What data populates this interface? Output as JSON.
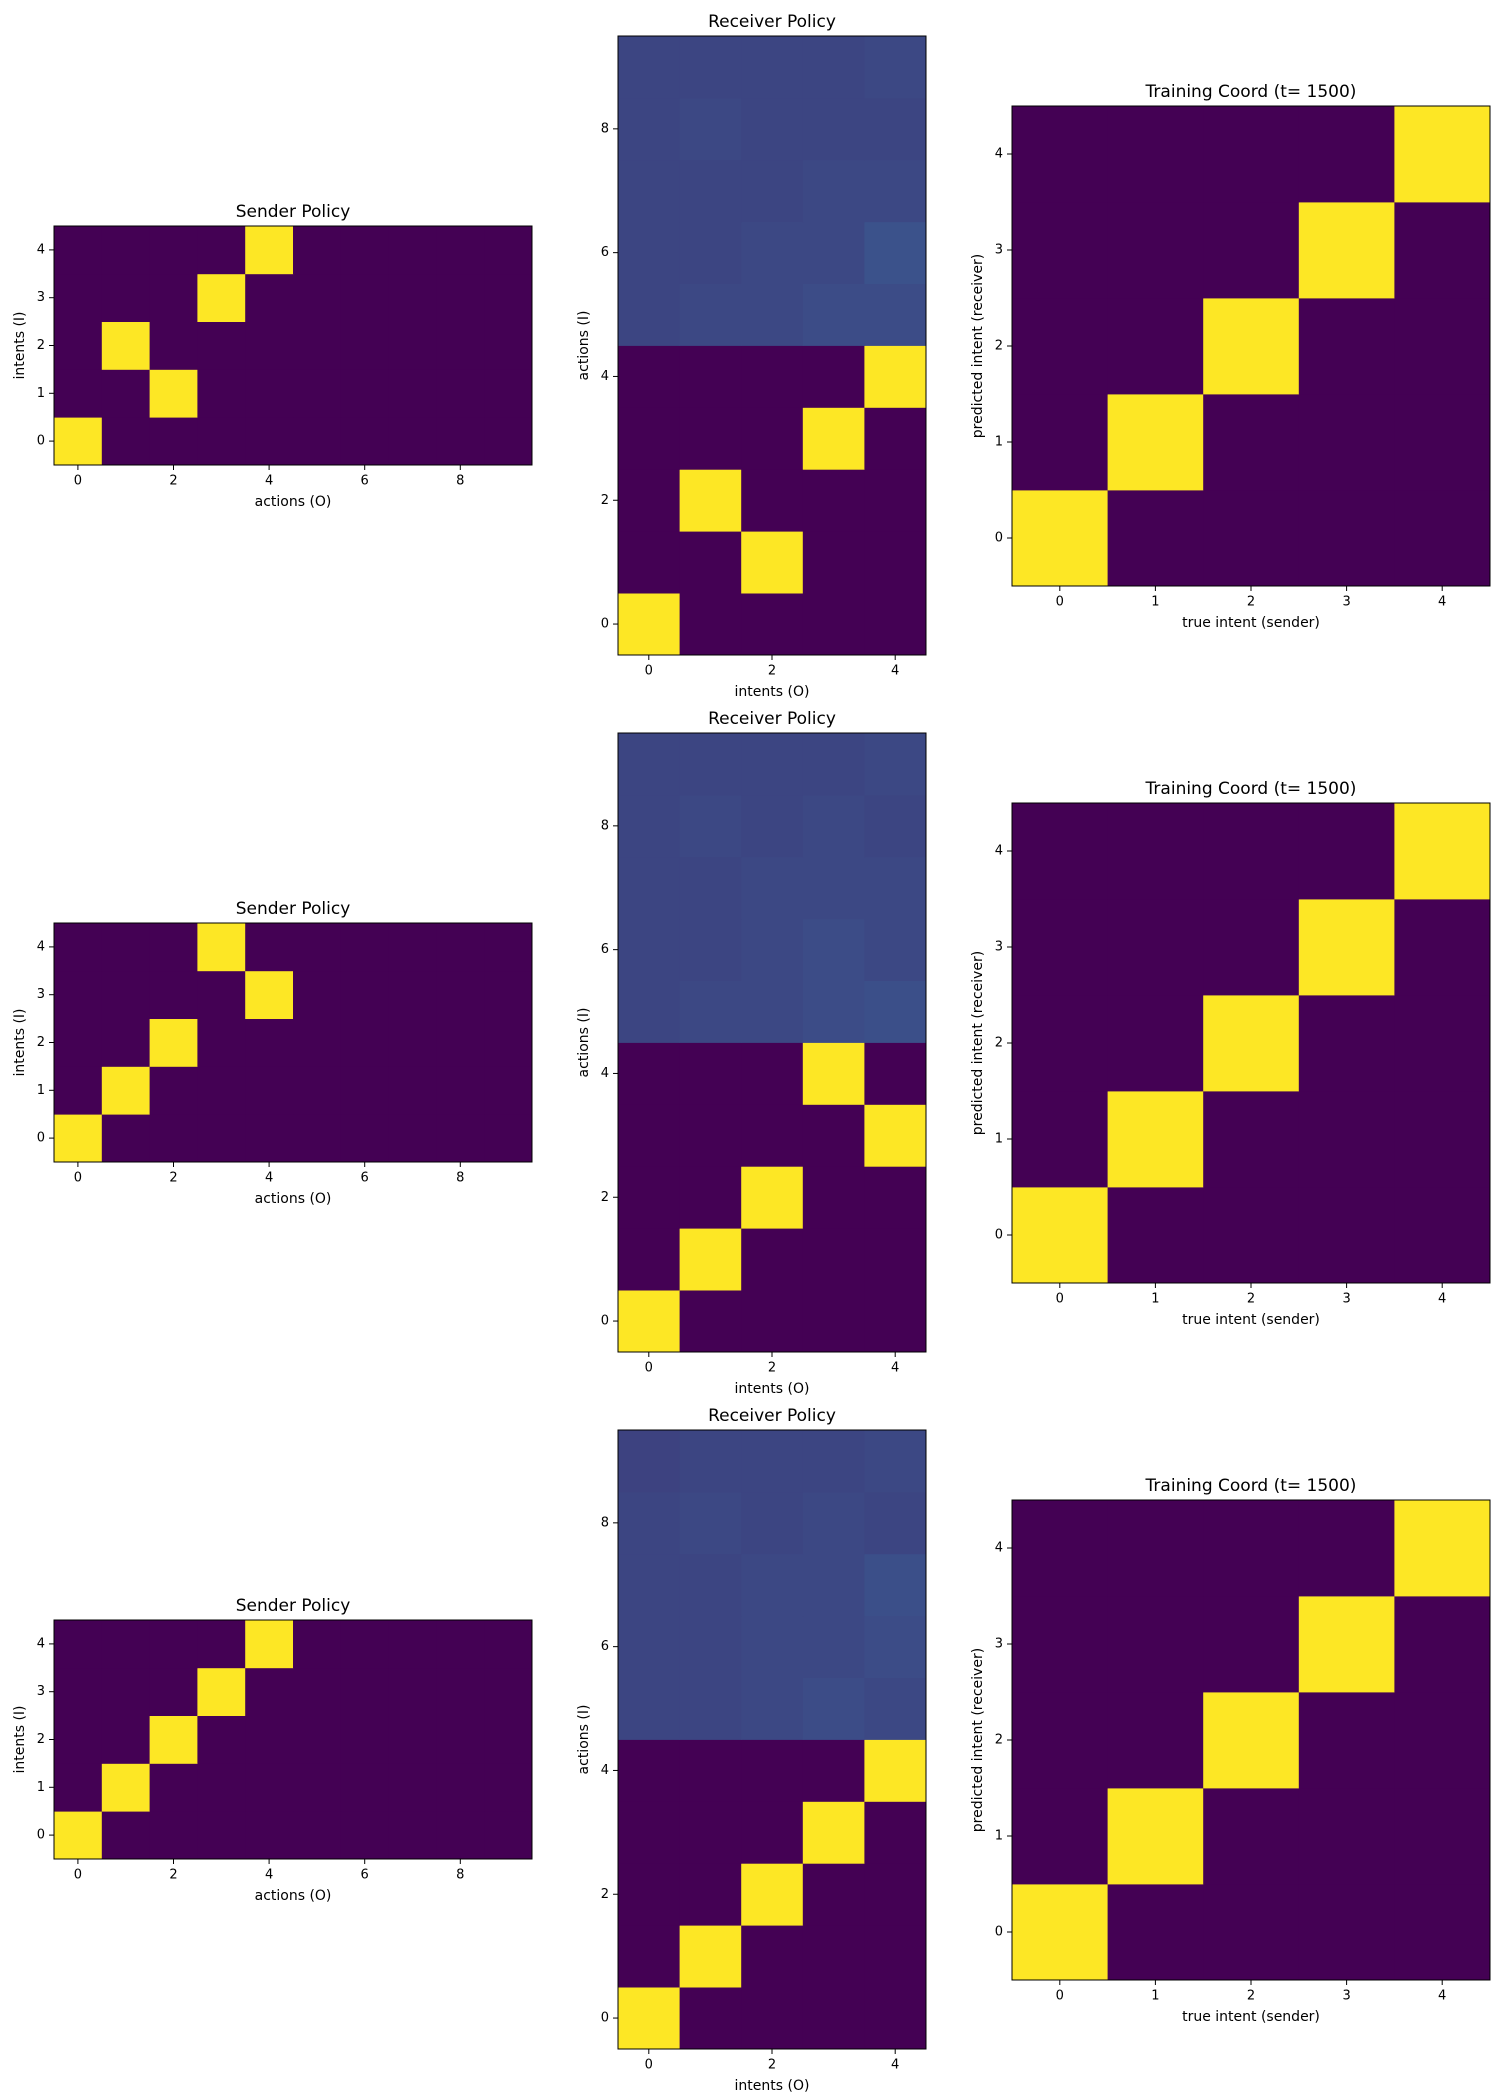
{
  "chart_data": [
    {
      "type": "heatmap",
      "title": "Sender Policy",
      "x_label": "actions (O)",
      "y_label": "intents (I)",
      "colormap": "viridis",
      "clim": [
        0,
        1
      ],
      "xlim": [
        -0.5,
        9.5
      ],
      "ylim": [
        -0.5,
        4.5
      ],
      "xticks": [
        0,
        2,
        4,
        6,
        8
      ],
      "yticks": [
        0,
        1,
        2,
        3,
        4
      ],
      "values": [
        [
          1,
          0,
          0,
          0,
          0,
          0,
          0,
          0,
          0,
          0
        ],
        [
          0,
          0,
          1,
          0,
          0,
          0,
          0,
          0,
          0,
          0
        ],
        [
          0,
          1,
          0,
          0,
          0,
          0,
          0,
          0,
          0,
          0
        ],
        [
          0,
          0,
          0,
          1,
          0,
          0,
          0,
          0,
          0,
          0
        ],
        [
          0,
          0,
          0,
          0,
          1,
          0,
          0,
          0,
          0,
          0
        ]
      ]
    },
    {
      "type": "heatmap",
      "title": "Receiver Policy",
      "x_label": "intents (O)",
      "y_label": "actions (I)",
      "colormap": "viridis",
      "clim": [
        0,
        1
      ],
      "xlim": [
        -0.5,
        4.5
      ],
      "ylim": [
        -0.5,
        9.5
      ],
      "xticks": [
        0,
        2,
        4
      ],
      "yticks": [
        0,
        2,
        4,
        6,
        8
      ],
      "values": [
        [
          1,
          0,
          0,
          0,
          0
        ],
        [
          0,
          0,
          1,
          0,
          0
        ],
        [
          0,
          1,
          0,
          0,
          0
        ],
        [
          0,
          0,
          0,
          1,
          0
        ],
        [
          0,
          0,
          0,
          0,
          1
        ],
        [
          0.21,
          0.22,
          0.22,
          0.23,
          0.23
        ],
        [
          0.21,
          0.21,
          0.22,
          0.22,
          0.25
        ],
        [
          0.21,
          0.21,
          0.21,
          0.22,
          0.22
        ],
        [
          0.21,
          0.22,
          0.21,
          0.21,
          0.21
        ],
        [
          0.21,
          0.21,
          0.21,
          0.21,
          0.22
        ]
      ]
    },
    {
      "type": "heatmap",
      "title": "Training Coord (t= 1500)",
      "x_label": "true intent (sender)",
      "y_label": "predicted intent (receiver)",
      "colormap": "viridis",
      "clim": [
        0,
        1
      ],
      "xlim": [
        -0.5,
        4.5
      ],
      "ylim": [
        -0.5,
        4.5
      ],
      "xticks": [
        0,
        1,
        2,
        3,
        4
      ],
      "yticks": [
        0,
        1,
        2,
        3,
        4
      ],
      "values": [
        [
          1,
          0,
          0,
          0,
          0
        ],
        [
          0,
          1,
          0,
          0,
          0
        ],
        [
          0,
          0,
          1,
          0,
          0
        ],
        [
          0,
          0,
          0,
          1,
          0
        ],
        [
          0,
          0,
          0,
          0,
          1
        ]
      ]
    },
    {
      "type": "heatmap",
      "title": "Sender Policy",
      "x_label": "actions (O)",
      "y_label": "intents (I)",
      "colormap": "viridis",
      "clim": [
        0,
        1
      ],
      "xlim": [
        -0.5,
        9.5
      ],
      "ylim": [
        -0.5,
        4.5
      ],
      "xticks": [
        0,
        2,
        4,
        6,
        8
      ],
      "yticks": [
        0,
        1,
        2,
        3,
        4
      ],
      "values": [
        [
          1,
          0,
          0,
          0,
          0,
          0,
          0,
          0,
          0,
          0
        ],
        [
          0,
          1,
          0,
          0,
          0,
          0,
          0,
          0,
          0,
          0
        ],
        [
          0,
          0,
          1,
          0,
          0,
          0,
          0,
          0,
          0,
          0
        ],
        [
          0,
          0,
          0,
          0,
          1,
          0,
          0,
          0,
          0,
          0
        ],
        [
          0,
          0,
          0,
          1,
          0,
          0,
          0,
          0,
          0,
          0
        ]
      ]
    },
    {
      "type": "heatmap",
      "title": "Receiver Policy",
      "x_label": "intents (O)",
      "y_label": "actions (I)",
      "colormap": "viridis",
      "clim": [
        0,
        1
      ],
      "xlim": [
        -0.5,
        4.5
      ],
      "ylim": [
        -0.5,
        9.5
      ],
      "xticks": [
        0,
        2,
        4
      ],
      "yticks": [
        0,
        2,
        4,
        6,
        8
      ],
      "values": [
        [
          1,
          0,
          0,
          0,
          0
        ],
        [
          0,
          1,
          0,
          0,
          0
        ],
        [
          0,
          0,
          1,
          0,
          0
        ],
        [
          0,
          0,
          0,
          0,
          1
        ],
        [
          0,
          0,
          0,
          1,
          0
        ],
        [
          0.21,
          0.22,
          0.22,
          0.23,
          0.24
        ],
        [
          0.21,
          0.21,
          0.22,
          0.23,
          0.22
        ],
        [
          0.21,
          0.21,
          0.22,
          0.22,
          0.22
        ],
        [
          0.21,
          0.22,
          0.21,
          0.22,
          0.21
        ],
        [
          0.21,
          0.21,
          0.21,
          0.21,
          0.22
        ]
      ]
    },
    {
      "type": "heatmap",
      "title": "Training Coord (t= 1500)",
      "x_label": "true intent (sender)",
      "y_label": "predicted intent (receiver)",
      "colormap": "viridis",
      "clim": [
        0,
        1
      ],
      "xlim": [
        -0.5,
        4.5
      ],
      "ylim": [
        -0.5,
        4.5
      ],
      "xticks": [
        0,
        1,
        2,
        3,
        4
      ],
      "yticks": [
        0,
        1,
        2,
        3,
        4
      ],
      "values": [
        [
          1,
          0,
          0,
          0,
          0
        ],
        [
          0,
          1,
          0,
          0,
          0
        ],
        [
          0,
          0,
          1,
          0,
          0
        ],
        [
          0,
          0,
          0,
          1,
          0
        ],
        [
          0,
          0,
          0,
          0,
          1
        ]
      ]
    },
    {
      "type": "heatmap",
      "title": "Sender Policy",
      "x_label": "actions (O)",
      "y_label": "intents (I)",
      "colormap": "viridis",
      "clim": [
        0,
        1
      ],
      "xlim": [
        -0.5,
        9.5
      ],
      "ylim": [
        -0.5,
        4.5
      ],
      "xticks": [
        0,
        2,
        4,
        6,
        8
      ],
      "yticks": [
        0,
        1,
        2,
        3,
        4
      ],
      "values": [
        [
          1,
          0,
          0,
          0,
          0,
          0,
          0,
          0,
          0,
          0
        ],
        [
          0,
          1,
          0,
          0,
          0,
          0,
          0,
          0,
          0,
          0
        ],
        [
          0,
          0,
          1,
          0,
          0,
          0,
          0,
          0,
          0,
          0
        ],
        [
          0,
          0,
          0,
          1,
          0,
          0,
          0,
          0,
          0,
          0
        ],
        [
          0,
          0,
          0,
          0,
          1,
          0,
          0,
          0,
          0,
          0
        ]
      ]
    },
    {
      "type": "heatmap",
      "title": "Receiver Policy",
      "x_label": "intents (O)",
      "y_label": "actions (I)",
      "colormap": "viridis",
      "clim": [
        0,
        1
      ],
      "xlim": [
        -0.5,
        4.5
      ],
      "ylim": [
        -0.5,
        9.5
      ],
      "xticks": [
        0,
        2,
        4
      ],
      "yticks": [
        0,
        2,
        4,
        6,
        8
      ],
      "values": [
        [
          1,
          0,
          0,
          0,
          0
        ],
        [
          0,
          1,
          0,
          0,
          0
        ],
        [
          0,
          0,
          1,
          0,
          0
        ],
        [
          0,
          0,
          0,
          1,
          0
        ],
        [
          0,
          0,
          0,
          0,
          1
        ],
        [
          0.21,
          0.21,
          0.22,
          0.23,
          0.22
        ],
        [
          0.21,
          0.21,
          0.22,
          0.22,
          0.23
        ],
        [
          0.21,
          0.21,
          0.22,
          0.22,
          0.24
        ],
        [
          0.21,
          0.22,
          0.21,
          0.22,
          0.21
        ],
        [
          0.2,
          0.21,
          0.21,
          0.21,
          0.22
        ]
      ]
    },
    {
      "type": "heatmap",
      "title": "Training Coord (t= 1500)",
      "x_label": "true intent (sender)",
      "y_label": "predicted intent (receiver)",
      "colormap": "viridis",
      "clim": [
        0,
        1
      ],
      "xlim": [
        -0.5,
        4.5
      ],
      "ylim": [
        -0.5,
        4.5
      ],
      "xticks": [
        0,
        1,
        2,
        3,
        4
      ],
      "yticks": [
        0,
        1,
        2,
        3,
        4
      ],
      "values": [
        [
          1,
          0,
          0,
          0,
          0
        ],
        [
          0,
          1,
          0,
          0,
          0
        ],
        [
          0,
          0,
          1,
          0,
          0
        ],
        [
          0,
          0,
          0,
          1,
          0
        ],
        [
          0,
          0,
          0,
          0,
          1
        ]
      ]
    }
  ]
}
